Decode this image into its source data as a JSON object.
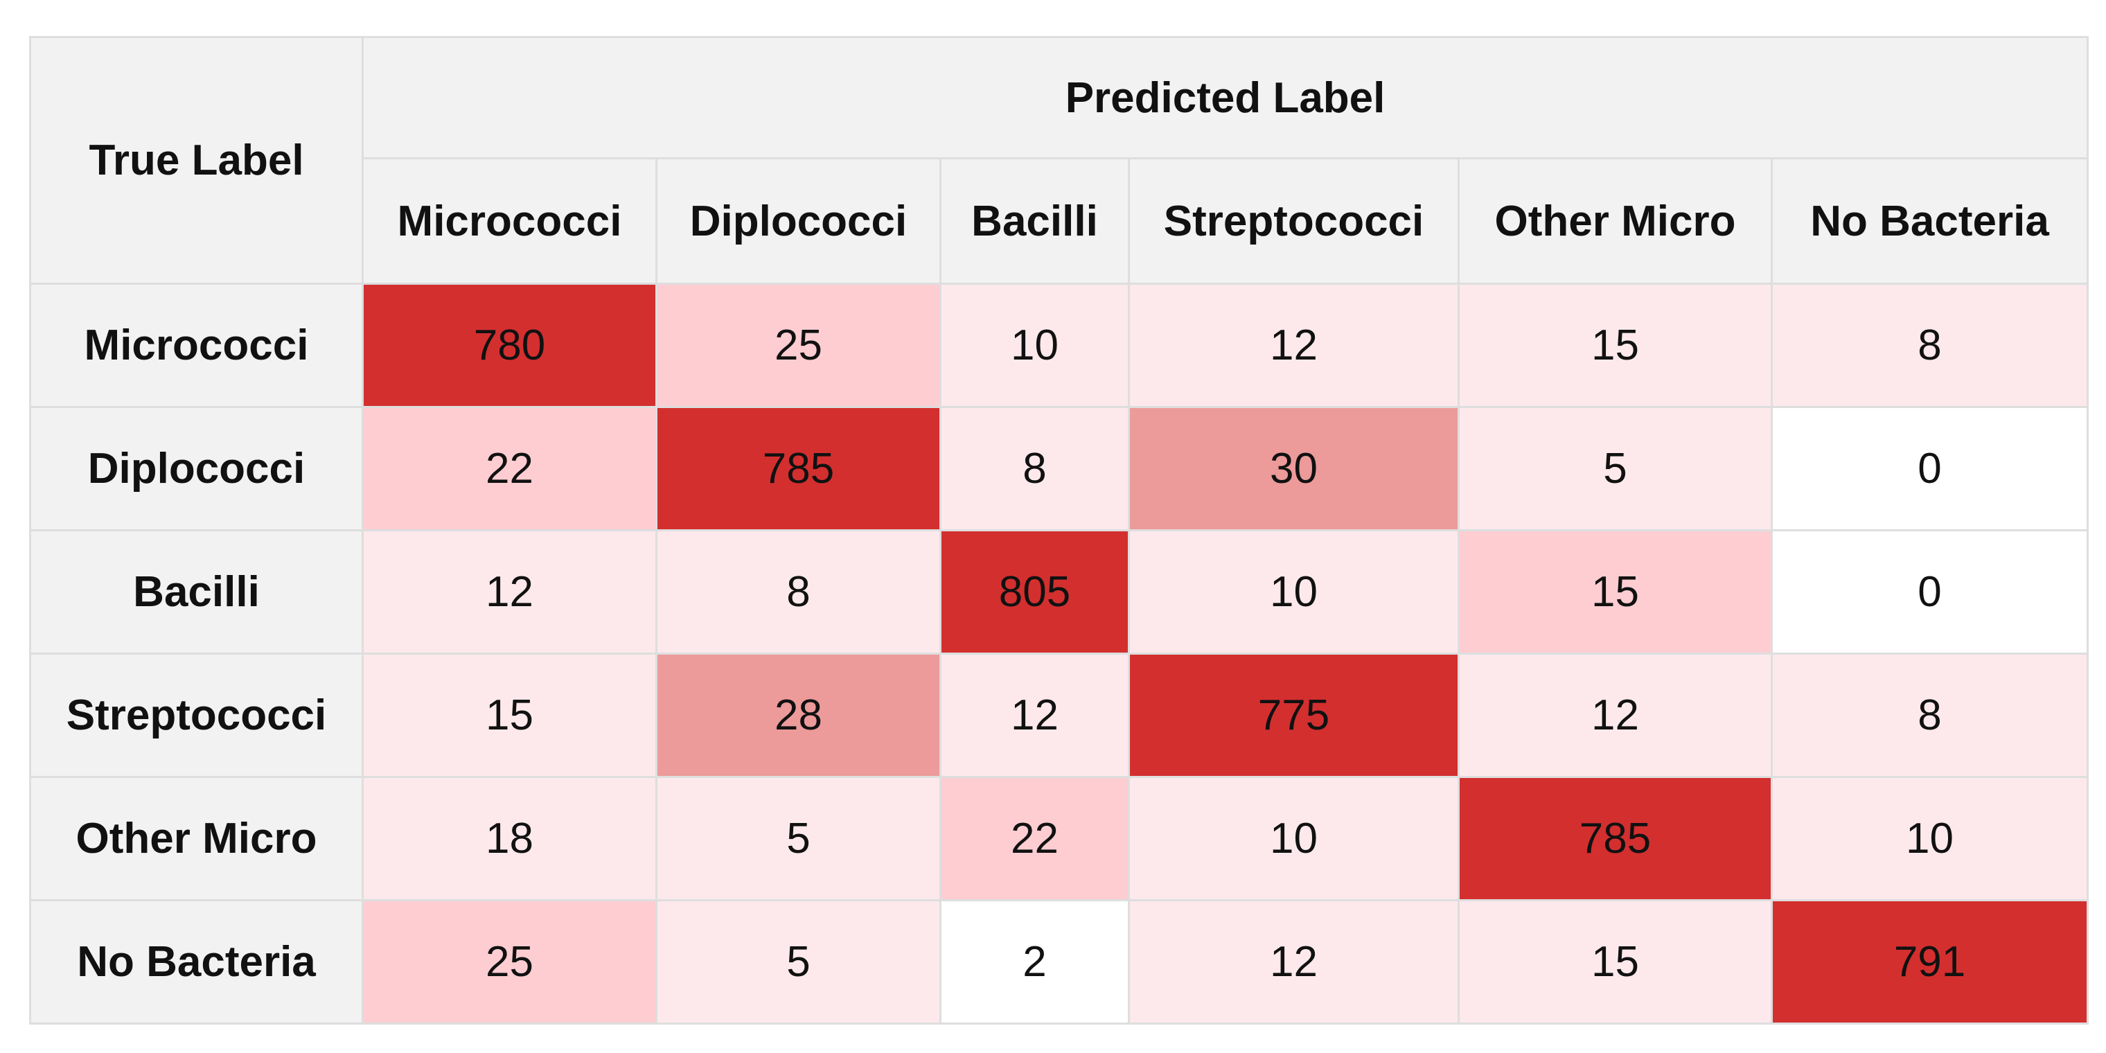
{
  "chart_data": {
    "type": "heatmap",
    "corner_label": "True Label",
    "column_group_label": "Predicted Label",
    "columns": [
      "Micrococci",
      "Diplococci",
      "Bacilli",
      "Streptococci",
      "Other Micro",
      "No Bacteria"
    ],
    "rows": [
      {
        "label": "Micrococci",
        "values": [
          780,
          25,
          10,
          12,
          15,
          8
        ]
      },
      {
        "label": "Diplococci",
        "values": [
          22,
          785,
          8,
          30,
          5,
          0
        ]
      },
      {
        "label": "Bacilli",
        "values": [
          12,
          8,
          805,
          10,
          15,
          0
        ]
      },
      {
        "label": "Streptococci",
        "values": [
          15,
          28,
          12,
          775,
          12,
          8
        ]
      },
      {
        "label": "Other Micro",
        "values": [
          18,
          5,
          22,
          10,
          785,
          10
        ]
      },
      {
        "label": "No Bacteria",
        "values": [
          25,
          5,
          2,
          12,
          15,
          791
        ]
      }
    ],
    "colors": {
      "high": "#d32f2f",
      "medium": "#ec9a9a",
      "low_medium": "#fdcdd2",
      "low": "#fde9ec",
      "zero": "#ffffff",
      "header_bg": "#f2f2f2",
      "grid": "#dedede"
    }
  }
}
